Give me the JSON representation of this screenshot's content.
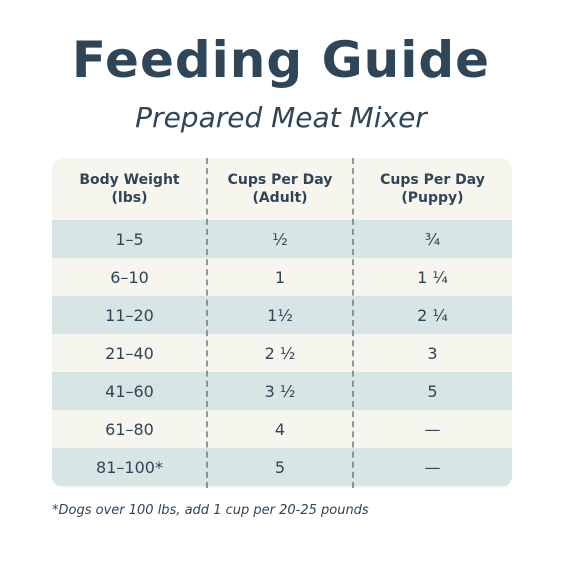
{
  "title": "Feeding Guide",
  "subtitle": "Prepared Meat Mixer",
  "table": {
    "headers": [
      "Body Weight\n(lbs)",
      "Cups Per Day\n(Adult)",
      "Cups Per Day\n(Puppy)"
    ],
    "rows": [
      [
        "1–5",
        "½",
        "¾"
      ],
      [
        "6–10",
        "1",
        "1 ¼"
      ],
      [
        "11–20",
        "1½",
        "2 ¼"
      ],
      [
        "21–40",
        "2 ½",
        "3"
      ],
      [
        "41–60",
        "3 ½",
        "5"
      ],
      [
        "61–80",
        "4",
        "—"
      ],
      [
        "81–100*",
        "5",
        "—"
      ]
    ]
  },
  "footnote": "*Dogs over 100 lbs, add 1 cup per 20-25 pounds",
  "colors": {
    "text": "#2f4558",
    "row_shade": "#d7e5e4",
    "row_plain": "#f6f5ee"
  }
}
